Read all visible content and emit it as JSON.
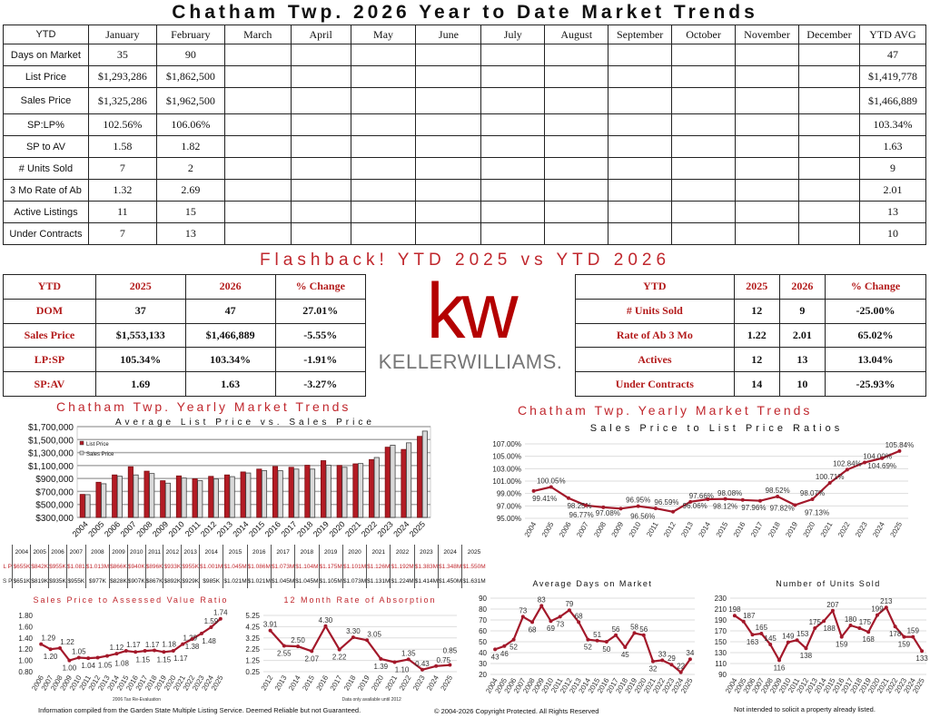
{
  "title": "Chatham Twp. 2026 Year to Date Market Trends",
  "main_table": {
    "headers": [
      "YTD",
      "January",
      "February",
      "March",
      "April",
      "May",
      "June",
      "July",
      "August",
      "September",
      "October",
      "November",
      "December",
      "YTD AVG"
    ],
    "rows": [
      {
        "label": "Days on Market",
        "jan": "35",
        "feb": "90",
        "avg": "47"
      },
      {
        "label": "List Price",
        "jan": "$1,293,286",
        "feb": "$1,862,500",
        "avg": "$1,419,778"
      },
      {
        "label": "Sales Price",
        "jan": "$1,325,286",
        "feb": "$1,962,500",
        "avg": "$1,466,889"
      },
      {
        "label": "SP:LP%",
        "jan": "102.56%",
        "feb": "106.06%",
        "avg": "103.34%"
      },
      {
        "label": "SP to AV",
        "jan": "1.58",
        "feb": "1.82",
        "avg": "1.63"
      },
      {
        "label": "# Units Sold",
        "jan": "7",
        "feb": "2",
        "avg": "9"
      },
      {
        "label": "3 Mo Rate of Ab",
        "jan": "1.32",
        "feb": "2.69",
        "avg": "2.01"
      },
      {
        "label": "Active Listings",
        "jan": "11",
        "feb": "15",
        "avg": "13"
      },
      {
        "label": "Under Contracts",
        "jan": "7",
        "feb": "13",
        "avg": "10"
      }
    ]
  },
  "flashback_title": "Flashback!  YTD 2025 vs YTD 2026",
  "compare_left": {
    "headers": [
      "YTD",
      "2025",
      "2026",
      "% Change"
    ],
    "rows": [
      [
        "DOM",
        "37",
        "47",
        "27.01%"
      ],
      [
        "Sales Price",
        "$1,553,133",
        "$1,466,889",
        "-5.55%"
      ],
      [
        "LP:SP",
        "105.34%",
        "103.34%",
        "-1.91%"
      ],
      [
        "SP:AV",
        "1.69",
        "1.63",
        "-3.27%"
      ]
    ]
  },
  "compare_right": {
    "headers": [
      "YTD",
      "2025",
      "2026",
      "% Change"
    ],
    "rows": [
      [
        "# Units Sold",
        "12",
        "9",
        "-25.00%"
      ],
      [
        "Rate of Ab 3 Mo",
        "1.22",
        "2.01",
        "65.02%"
      ],
      [
        "Actives",
        "12",
        "13",
        "13.04%"
      ],
      [
        "Under Contracts",
        "14",
        "10",
        "-25.93%"
      ]
    ]
  },
  "logo": {
    "mark": "kw",
    "text": "KELLERWILLIAMS."
  },
  "section_title_left": "Chatham Twp. Yearly Market Trends",
  "section_title_right": "Chatham Twp. Yearly Market Trends",
  "colors": {
    "accent": "#c0272d",
    "line": "#a3182a",
    "bar_list": "#b31b24",
    "bar_sales": "#d9d9d9"
  },
  "price_table": {
    "lp_label": "L P",
    "sp_label": "S P",
    "years": [
      "2004",
      "2005",
      "2006",
      "2007",
      "2008",
      "2009",
      "2010",
      "2011",
      "2012",
      "2013",
      "2014",
      "2015",
      "2016",
      "2017",
      "2018",
      "2019",
      "2020",
      "2021",
      "2022",
      "2023",
      "2024",
      "2025"
    ],
    "lp": [
      "$655K",
      "$842K",
      "$955K",
      "$1.081",
      "$1.013M",
      "$866K",
      "$940K",
      "$896K",
      "$933K",
      "$955K",
      "$1.001M",
      "$1.045M",
      "$1.086M",
      "$1.073M",
      "$1.104M",
      "$1.175M",
      "$1.101M",
      "$1.126M",
      "$1.192M",
      "$1.383M",
      "$1.348M",
      "$1.550M"
    ],
    "sp": [
      "$651K",
      "$819K",
      "$935K",
      "$955K",
      "$977K",
      "$828K",
      "$907K",
      "$867K",
      "$892K",
      "$929K",
      "$985K",
      "$1.021M",
      "$1.021M",
      "$1.045M",
      "$1.045M",
      "$1.105M",
      "$1.073M",
      "$1.131M",
      "$1.224M",
      "$1.414M",
      "$1.450M",
      "$1.631M"
    ]
  },
  "chart_data": [
    {
      "id": "bar",
      "type": "bar",
      "title": "Average List Price vs. Sales Price",
      "categories": [
        "2004",
        "2005",
        "2006",
        "2007",
        "2008",
        "2009",
        "2010",
        "2011",
        "2012",
        "2013",
        "2014",
        "2015",
        "2016",
        "2017",
        "2018",
        "2019",
        "2020",
        "2021",
        "2022",
        "2023",
        "2024",
        "2025"
      ],
      "series": [
        {
          "name": "List Price",
          "values": [
            655000,
            842000,
            955000,
            1081000,
            1013000,
            866000,
            940000,
            896000,
            933000,
            955000,
            1001000,
            1045000,
            1086000,
            1073000,
            1104000,
            1175000,
            1101000,
            1126000,
            1192000,
            1383000,
            1348000,
            1550000
          ]
        },
        {
          "name": "Sales Price",
          "values": [
            651000,
            819000,
            935000,
            955000,
            977000,
            828000,
            907000,
            867000,
            892000,
            929000,
            985000,
            1021000,
            1021000,
            1045000,
            1045000,
            1105000,
            1073000,
            1131000,
            1224000,
            1414000,
            1450000,
            1631000
          ]
        }
      ],
      "ylim": [
        300000,
        1700000
      ],
      "yticks": [
        "$300,000",
        "$500,000",
        "$700,000",
        "$900,000",
        "$1,100,000",
        "$1,300,000",
        "$1,500,000",
        "$1,700,000"
      ],
      "grid": true,
      "legend": "top-left"
    },
    {
      "id": "splp",
      "type": "line",
      "title": "Sales Price to List Price Ratios",
      "x": [
        "2004",
        "2005",
        "2006",
        "2007",
        "2008",
        "2009",
        "2010",
        "2011",
        "2012",
        "2013",
        "2014",
        "2015",
        "2016",
        "2017",
        "2018",
        "2019",
        "2020",
        "2021",
        "2022",
        "2023",
        "2024",
        "2025"
      ],
      "values": [
        99.41,
        100.05,
        98.25,
        97.08,
        96.77,
        96.56,
        96.95,
        96.59,
        96.06,
        97.66,
        98.08,
        98.12,
        97.96,
        97.82,
        98.52,
        97.13,
        98.07,
        100.71,
        102.84,
        104.0,
        104.69,
        105.84
      ],
      "labels": [
        "99.41%",
        "100.05%",
        "98.25%",
        "97.08%",
        "96.77%",
        "96.56%",
        "96.95%",
        "96.59%",
        "96.06%",
        "97.66%",
        "98.08%",
        "98.12%",
        "97.96%",
        "97.82%",
        "98.52%",
        "97.13%",
        "98.07%",
        "100.71%",
        "102.84%",
        "104.00%",
        "104.69%",
        "105.84%"
      ],
      "ylim": [
        95,
        107
      ],
      "yticks": [
        "95.00%",
        "97.00%",
        "99.00%",
        "101.00%",
        "103.00%",
        "105.00%",
        "107.00%"
      ],
      "grid": true
    },
    {
      "id": "spav",
      "type": "line",
      "title": "Sales Price to Assessed Value Ratio",
      "note": "2006 Tax Re-Evaluation",
      "x": [
        "2006",
        "2007",
        "2008",
        "2009",
        "2010",
        "2011",
        "2012",
        "2013",
        "2014",
        "2015",
        "2016",
        "2017",
        "2018",
        "2019",
        "2020",
        "2021",
        "2022",
        "2023",
        "2024",
        "2025"
      ],
      "values": [
        1.29,
        1.2,
        1.22,
        1.0,
        1.05,
        1.04,
        1.05,
        1.08,
        1.12,
        1.17,
        1.15,
        1.17,
        1.18,
        1.15,
        1.17,
        1.29,
        1.38,
        1.48,
        1.59,
        1.74
      ],
      "labels": [
        "1.29",
        "1.20",
        "1.22",
        "1.00",
        "1.05",
        "1.04",
        "1.05",
        "1.08",
        "1.12",
        "1.17",
        "1.15",
        "1.17",
        "1.18",
        "1.15",
        "1.17",
        "1.29",
        "1.38",
        "1.48",
        "1.59",
        "1.74"
      ],
      "ylim": [
        0.8,
        1.8
      ],
      "yticks": [
        "0.80",
        "1.00",
        "1.20",
        "1.40",
        "1.60",
        "1.80"
      ],
      "grid": false
    },
    {
      "id": "abs",
      "type": "line",
      "title": "12 Month Rate of Absorption",
      "note": "Data only available until 2012",
      "x": [
        "2012",
        "2013",
        "2014",
        "2015",
        "2016",
        "2017",
        "2018",
        "2019",
        "2020",
        "2021",
        "2022",
        "2023",
        "2024",
        "2025"
      ],
      "values": [
        3.91,
        2.55,
        2.5,
        2.07,
        4.3,
        2.22,
        3.3,
        3.05,
        1.39,
        1.1,
        1.35,
        0.43,
        0.75,
        0.85
      ],
      "labels": [
        "3.91",
        "2.55",
        "2.50",
        "2.07",
        "4.30",
        "2.22",
        "3.30",
        "3.05",
        "1.39",
        "1.10",
        "1.35",
        "0.43",
        "0.75",
        "0.85"
      ],
      "ylim": [
        0.25,
        5.25
      ],
      "yticks": [
        "0.25",
        "1.25",
        "2.25",
        "3.25",
        "4.25",
        "5.25"
      ],
      "grid": true
    },
    {
      "id": "dom",
      "type": "line",
      "title": "Average Days on Market",
      "x": [
        "2004",
        "2005",
        "2006",
        "2007",
        "2008",
        "2009",
        "2010",
        "2011",
        "2012",
        "2013",
        "2014",
        "2015",
        "2016",
        "2017",
        "2018",
        "2019",
        "2020",
        "2021",
        "2022",
        "2023",
        "2024",
        "2025"
      ],
      "values": [
        43,
        46,
        52,
        73,
        68,
        83,
        69,
        73,
        79,
        68,
        52,
        51,
        50,
        56,
        45,
        58,
        56,
        32,
        33,
        29,
        22,
        34
      ],
      "labels": [
        "43",
        "46",
        "52",
        "73",
        "68",
        "83",
        "69",
        "73",
        "79",
        "68",
        "52",
        "51",
        "50",
        "56",
        "45",
        "58",
        "56",
        "32",
        "33",
        "29",
        "22",
        "34"
      ],
      "ylim": [
        20,
        90
      ],
      "yticks": [
        "20",
        "30",
        "40",
        "50",
        "60",
        "70",
        "80",
        "90"
      ],
      "grid": true
    },
    {
      "id": "units",
      "type": "line",
      "title": "Number of Units Sold",
      "x": [
        "2004",
        "2005",
        "2006",
        "2007",
        "2008",
        "2009",
        "2010",
        "2011",
        "2012",
        "2013",
        "2014",
        "2015",
        "2016",
        "2017",
        "2018",
        "2019",
        "2020",
        "2021",
        "2022",
        "2023",
        "2024",
        "2025"
      ],
      "values": [
        198,
        187,
        163,
        165,
        145,
        116,
        149,
        153,
        138,
        175,
        188,
        207,
        159,
        180,
        175,
        168,
        199,
        213,
        178,
        159,
        159,
        133
      ],
      "labels": [
        "198",
        "187",
        "163",
        "165",
        "145",
        "116",
        "149",
        "153",
        "138",
        "175",
        "188",
        "207",
        "159",
        "180",
        "175",
        "168",
        "199",
        "213",
        "178",
        "159",
        "159",
        "133"
      ],
      "ylim": [
        90,
        230
      ],
      "yticks": [
        "90",
        "110",
        "130",
        "150",
        "170",
        "190",
        "210",
        "230"
      ],
      "grid": true
    }
  ],
  "footer": {
    "left": "Information compiled from the Garden State Multiple Listing Service.  Deemed Reliable but not Guaranteed.",
    "center": "© 2004-2026 Copyright Protected.  All Rights Reserved",
    "right": "Not intended to solicit a property already listed."
  }
}
